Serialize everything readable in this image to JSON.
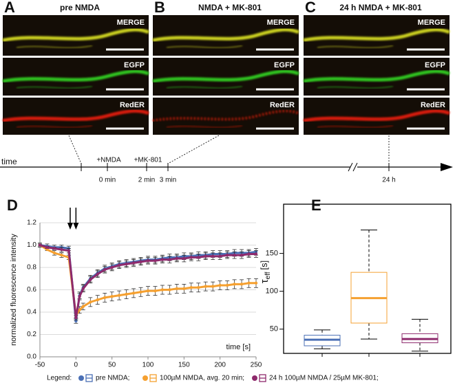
{
  "figure": {
    "panels": [
      {
        "letter": "A",
        "title": "pre NMDA",
        "channels": [
          "MERGE",
          "EGFP",
          "RedER"
        ]
      },
      {
        "letter": "B",
        "title": "NMDA + MK-801",
        "channels": [
          "MERGE",
          "EGFP",
          "RedER"
        ]
      },
      {
        "letter": "C",
        "title": "24 h NMDA + MK-801",
        "channels": [
          "MERGE",
          "EGFP",
          "RedER"
        ]
      }
    ],
    "timeline": {
      "label": "time",
      "events": [
        {
          "above": "+NMDA",
          "below": "0 min"
        },
        {
          "above": "+MK-801",
          "below": "2 min"
        },
        {
          "below": "3 min"
        },
        {
          "below": "24 h"
        }
      ]
    }
  },
  "chart_data": [
    {
      "type": "line",
      "letter": "D",
      "xlabel": "time [s]",
      "ylabel": "normalized fluorescence intensity",
      "x": [
        -50,
        -40,
        -30,
        -20,
        -10,
        0,
        5,
        10,
        20,
        30,
        40,
        50,
        60,
        70,
        80,
        90,
        100,
        110,
        120,
        130,
        140,
        150,
        160,
        170,
        180,
        190,
        200,
        210,
        220,
        230,
        240,
        250
      ],
      "xlim": [
        -50,
        250
      ],
      "xticks": [
        -50,
        0,
        50,
        100,
        150,
        200,
        250
      ],
      "ylim": [
        0,
        1.2
      ],
      "yticks": [
        {
          "value": 0,
          "label": "0.0"
        },
        {
          "value": 0.2,
          "label": "0.2"
        },
        {
          "value": 0.4,
          "label": "0.4"
        },
        {
          "value": 0.6,
          "label": "0.6"
        },
        {
          "value": 0.8,
          "label": "0.8"
        },
        {
          "value": 1,
          "label": "1.0"
        },
        {
          "value": 1.2,
          "label": "1.2"
        }
      ],
      "grid": true,
      "arrows_x": [
        -8,
        0
      ],
      "legend_title": "Legend:",
      "series": [
        {
          "name": "pre NMDA;",
          "color": "#4a6fb5",
          "values": [
            1.0,
            0.99,
            0.98,
            0.98,
            0.97,
            0.32,
            0.55,
            0.62,
            0.7,
            0.75,
            0.79,
            0.81,
            0.83,
            0.84,
            0.85,
            0.86,
            0.87,
            0.87,
            0.88,
            0.89,
            0.89,
            0.9,
            0.9,
            0.91,
            0.91,
            0.92,
            0.92,
            0.92,
            0.93,
            0.93,
            0.93,
            0.94
          ],
          "errors": [
            0.02,
            0.02,
            0.02,
            0.02,
            0.02,
            0.02,
            0.03,
            0.03,
            0.03,
            0.03,
            0.03,
            0.03,
            0.03,
            0.03,
            0.03,
            0.03,
            0.03,
            0.03,
            0.03,
            0.03,
            0.03,
            0.03,
            0.03,
            0.03,
            0.03,
            0.03,
            0.03,
            0.03,
            0.03,
            0.03,
            0.03,
            0.03
          ]
        },
        {
          "name": "100µM NMDA, avg. 20 min;",
          "color": "#f5a030",
          "values": [
            1.0,
            0.96,
            0.93,
            0.91,
            0.89,
            0.37,
            0.42,
            0.45,
            0.49,
            0.51,
            0.53,
            0.54,
            0.55,
            0.56,
            0.57,
            0.58,
            0.59,
            0.59,
            0.6,
            0.6,
            0.61,
            0.61,
            0.62,
            0.62,
            0.63,
            0.63,
            0.64,
            0.64,
            0.65,
            0.65,
            0.66,
            0.66
          ],
          "errors": [
            0.01,
            0.01,
            0.02,
            0.02,
            0.02,
            0.02,
            0.03,
            0.03,
            0.04,
            0.04,
            0.04,
            0.04,
            0.04,
            0.04,
            0.04,
            0.04,
            0.04,
            0.04,
            0.04,
            0.04,
            0.04,
            0.04,
            0.04,
            0.04,
            0.04,
            0.04,
            0.04,
            0.04,
            0.04,
            0.04,
            0.04,
            0.04
          ]
        },
        {
          "name": "24 h 100µM NMDA / 25µM MK-801;",
          "color": "#8e2a6c",
          "values": [
            1.0,
            0.98,
            0.97,
            0.96,
            0.95,
            0.35,
            0.54,
            0.61,
            0.69,
            0.74,
            0.78,
            0.8,
            0.82,
            0.83,
            0.84,
            0.85,
            0.86,
            0.86,
            0.87,
            0.87,
            0.88,
            0.88,
            0.89,
            0.89,
            0.9,
            0.9,
            0.9,
            0.91,
            0.91,
            0.91,
            0.92,
            0.92
          ],
          "errors": [
            0.01,
            0.01,
            0.01,
            0.02,
            0.02,
            0.02,
            0.03,
            0.03,
            0.03,
            0.03,
            0.03,
            0.03,
            0.03,
            0.03,
            0.03,
            0.03,
            0.03,
            0.03,
            0.03,
            0.03,
            0.03,
            0.03,
            0.03,
            0.03,
            0.03,
            0.03,
            0.03,
            0.03,
            0.03,
            0.03,
            0.03,
            0.03
          ]
        }
      ]
    },
    {
      "type": "box",
      "letter": "E",
      "ylabel": {
        "symbol": "τ",
        "subscript": "eff",
        "unit": "[s]"
      },
      "ylim": [
        18,
        215
      ],
      "yticks": [
        50,
        100,
        150
      ],
      "boxes": [
        {
          "color": "#4a6fb5",
          "min": 24,
          "q1": 28,
          "median": 36,
          "q3": 42,
          "max": 49
        },
        {
          "color": "#f5a030",
          "min": 37,
          "q1": 58,
          "median": 91,
          "q3": 125,
          "max": 181
        },
        {
          "color": "#8e2a6c",
          "min": 21,
          "q1": 32,
          "median": 37,
          "q3": 44,
          "max": 63
        }
      ]
    }
  ]
}
